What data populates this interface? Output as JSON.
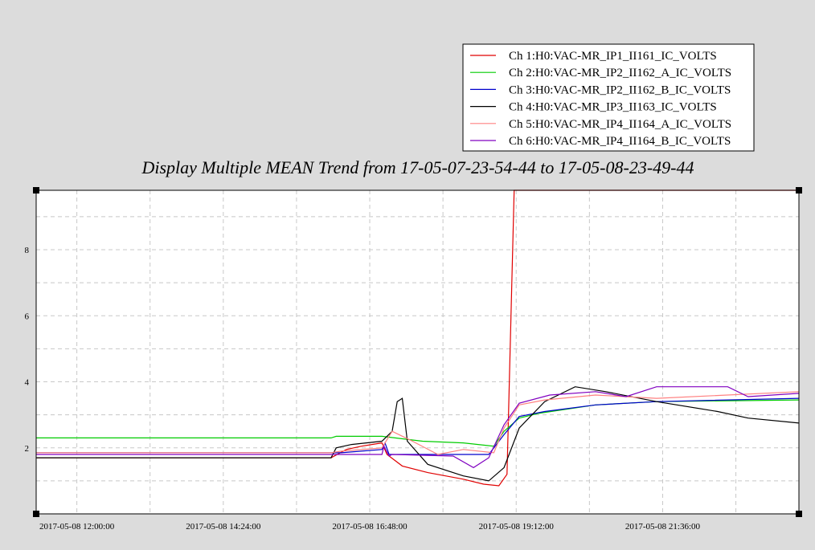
{
  "chart_data": {
    "type": "line",
    "title": "Display Multiple MEAN Trend from 17-05-07-23-54-44 to 17-05-08-23-49-44",
    "xlabel": "",
    "ylabel": "",
    "x_ticks": [
      "2017-05-08 12:00:00",
      "2017-05-08 14:24:00",
      "2017-05-08 16:48:00",
      "2017-05-08 19:12:00",
      "2017-05-08 21:36:00"
    ],
    "y_ticks": [
      "2",
      "4",
      "6",
      "8"
    ],
    "xlim": [
      "2017-05-08 11:20",
      "2017-05-08 23:50"
    ],
    "ylim": [
      0,
      9.8
    ],
    "grid": true,
    "legend_position": "top-right",
    "colors": {
      "background": "#dcdcdc",
      "plot_background": "#ffffff",
      "grid": "#c8c8c8"
    },
    "series": [
      {
        "name": "Ch 1:H0:VAC-MR_IP1_II161_IC_VOLTS",
        "color": "#e00000",
        "x": [
          "2017-05-08 11:20",
          "2017-05-08 16:10",
          "2017-05-08 16:25",
          "2017-05-08 16:40",
          "2017-05-08 17:00",
          "2017-05-08 17:05",
          "2017-05-08 17:20",
          "2017-05-08 17:45",
          "2017-05-08 18:20",
          "2017-05-08 18:40",
          "2017-05-08 18:55",
          "2017-05-08 19:03",
          "2017-05-08 19:10",
          "2017-05-08 23:50"
        ],
        "y": [
          1.7,
          1.7,
          1.95,
          2.05,
          2.15,
          1.8,
          1.45,
          1.25,
          1.05,
          0.9,
          0.85,
          1.2,
          9.8,
          9.8
        ]
      },
      {
        "name": "Ch 2:H0:VAC-MR_IP2_II162_A_IC_VOLTS",
        "color": "#00cc00",
        "x": [
          "2017-05-08 11:20",
          "2017-05-08 16:10",
          "2017-05-08 16:15",
          "2017-05-08 17:00",
          "2017-05-08 17:40",
          "2017-05-08 18:20",
          "2017-05-08 18:50",
          "2017-05-08 19:00",
          "2017-05-08 19:15",
          "2017-05-08 19:35",
          "2017-05-08 20:30",
          "2017-05-08 21:30",
          "2017-05-08 23:50"
        ],
        "y": [
          2.3,
          2.3,
          2.35,
          2.35,
          2.2,
          2.15,
          2.05,
          2.5,
          2.9,
          3.05,
          3.3,
          3.4,
          3.45
        ]
      },
      {
        "name": "Ch 3:H0:VAC-MR_IP2_II162_B_IC_VOLTS",
        "color": "#0000cc",
        "x": [
          "2017-05-08 11:20",
          "2017-05-08 16:10",
          "2017-05-08 16:20",
          "2017-05-08 17:00",
          "2017-05-08 17:03",
          "2017-05-08 17:07",
          "2017-05-08 18:45",
          "2017-05-08 19:00",
          "2017-05-08 19:15",
          "2017-05-08 19:40",
          "2017-05-08 20:30",
          "2017-05-08 21:30",
          "2017-05-08 23:50"
        ],
        "y": [
          1.85,
          1.85,
          1.85,
          1.95,
          2.15,
          1.8,
          1.8,
          2.4,
          2.95,
          3.1,
          3.3,
          3.4,
          3.5
        ]
      },
      {
        "name": "Ch 4:H0:VAC-MR_IP3_II163_IC_VOLTS",
        "color": "#000000",
        "x": [
          "2017-05-08 11:20",
          "2017-05-08 16:10",
          "2017-05-08 16:15",
          "2017-05-08 16:30",
          "2017-05-08 17:00",
          "2017-05-08 17:10",
          "2017-05-08 17:15",
          "2017-05-08 17:20",
          "2017-05-08 17:25",
          "2017-05-08 17:45",
          "2017-05-08 18:20",
          "2017-05-08 18:45",
          "2017-05-08 19:00",
          "2017-05-08 19:15",
          "2017-05-08 19:40",
          "2017-05-08 20:10",
          "2017-05-08 20:40",
          "2017-05-08 21:30",
          "2017-05-08 22:30",
          "2017-05-08 23:00",
          "2017-05-08 23:50"
        ],
        "y": [
          1.7,
          1.7,
          2.0,
          2.1,
          2.2,
          2.5,
          3.4,
          3.5,
          2.2,
          1.5,
          1.15,
          1.0,
          1.4,
          2.6,
          3.4,
          3.85,
          3.7,
          3.4,
          3.1,
          2.9,
          2.75
        ]
      },
      {
        "name": "Ch 5:H0:VAC-MR_IP4_II164_A_IC_VOLTS",
        "color": "#ff8080",
        "x": [
          "2017-05-08 11:20",
          "2017-05-08 16:10",
          "2017-05-08 16:20",
          "2017-05-08 17:00",
          "2017-05-08 17:10",
          "2017-05-08 17:30",
          "2017-05-08 17:55",
          "2017-05-08 18:20",
          "2017-05-08 18:50",
          "2017-05-08 19:00",
          "2017-05-08 19:15",
          "2017-05-08 19:40",
          "2017-05-08 20:30",
          "2017-05-08 21:30",
          "2017-05-08 23:50"
        ],
        "y": [
          1.85,
          1.85,
          1.9,
          2.0,
          2.5,
          2.2,
          1.8,
          1.95,
          1.85,
          2.6,
          3.3,
          3.45,
          3.6,
          3.5,
          3.7
        ]
      },
      {
        "name": "Ch 6:H0:VAC-MR_IP4_II164_B_IC_VOLTS",
        "color": "#8000c0",
        "x": [
          "2017-05-08 11:20",
          "2017-05-08 16:10",
          "2017-05-08 17:00",
          "2017-05-08 17:02",
          "2017-05-08 17:07",
          "2017-05-08 17:10",
          "2017-05-08 18:10",
          "2017-05-08 18:30",
          "2017-05-08 18:45",
          "2017-05-08 19:00",
          "2017-05-08 19:15",
          "2017-05-08 19:45",
          "2017-05-08 20:30",
          "2017-05-08 21:00",
          "2017-05-08 21:30",
          "2017-05-08 22:40",
          "2017-05-08 23:00",
          "2017-05-08 23:50"
        ],
        "y": [
          1.8,
          1.8,
          1.8,
          2.05,
          1.75,
          1.8,
          1.75,
          1.4,
          1.7,
          2.7,
          3.35,
          3.6,
          3.7,
          3.55,
          3.85,
          3.85,
          3.55,
          3.65
        ]
      }
    ]
  }
}
